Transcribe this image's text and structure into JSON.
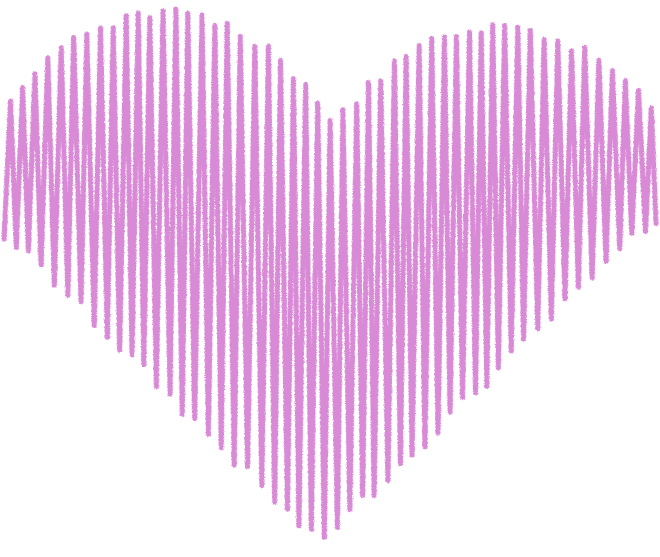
{
  "illustration": {
    "subject": "heart-shape",
    "style": "crayon-scribble",
    "stroke_color": "#d98ad6",
    "background_color": "#ffffff"
  }
}
